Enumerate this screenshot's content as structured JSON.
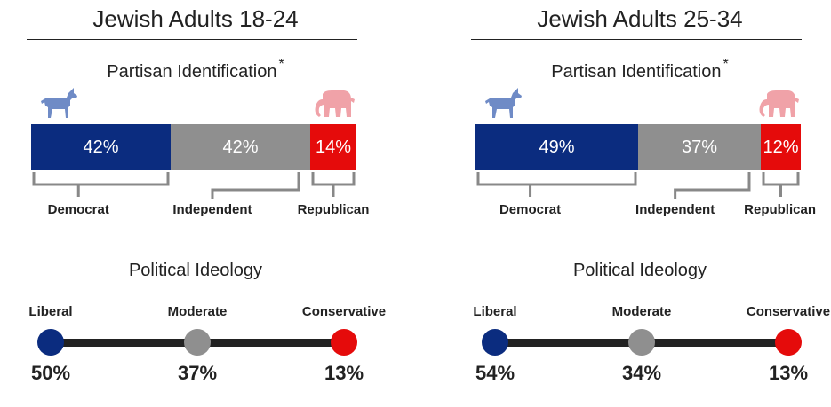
{
  "colors": {
    "democrat": "#0b2c7f",
    "independent": "#8f8f8f",
    "republican": "#e50b0b",
    "donkey": "#6f8bc6",
    "elephant": "#f0a2a8",
    "axis": "#222222"
  },
  "icons": {
    "democrat": "donkey-icon",
    "republican": "elephant-icon"
  },
  "chart_data": [
    {
      "type": "bar",
      "title": "Jewish Adults 18-24",
      "partisan": {
        "subtitle": "Partisan Identification",
        "footnote_mark": "*",
        "categories": [
          "Democrat",
          "Independent",
          "Republican"
        ],
        "values": [
          42,
          42,
          14
        ],
        "value_labels": [
          "42%",
          "42%",
          "14%"
        ]
      },
      "ideology": {
        "subtitle": "Political Ideology",
        "categories": [
          "Liberal",
          "Moderate",
          "Conservative"
        ],
        "values": [
          50,
          37,
          13
        ],
        "value_labels": [
          "50%",
          "37%",
          "13%"
        ]
      }
    },
    {
      "type": "bar",
      "title": "Jewish Adults 25-34",
      "partisan": {
        "subtitle": "Partisan Identification",
        "footnote_mark": "*",
        "categories": [
          "Democrat",
          "Independent",
          "Republican"
        ],
        "values": [
          49,
          37,
          12
        ],
        "value_labels": [
          "49%",
          "37%",
          "12%"
        ]
      },
      "ideology": {
        "subtitle": "Political Ideology",
        "categories": [
          "Liberal",
          "Moderate",
          "Conservative"
        ],
        "values": [
          54,
          34,
          13
        ],
        "value_labels": [
          "54%",
          "34%",
          "13%"
        ]
      }
    }
  ]
}
